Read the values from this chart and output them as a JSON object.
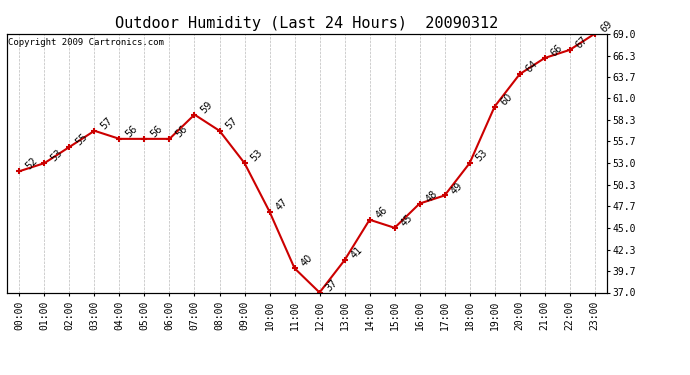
{
  "title": "Outdoor Humidity (Last 24 Hours)  20090312",
  "copyright": "Copyright 2009 Cartronics.com",
  "x_labels": [
    "00:00",
    "01:00",
    "02:00",
    "03:00",
    "04:00",
    "05:00",
    "06:00",
    "07:00",
    "08:00",
    "09:00",
    "10:00",
    "11:00",
    "12:00",
    "13:00",
    "14:00",
    "15:00",
    "16:00",
    "17:00",
    "18:00",
    "19:00",
    "20:00",
    "21:00",
    "22:00",
    "23:00"
  ],
  "y_values": [
    52,
    53,
    55,
    57,
    56,
    56,
    56,
    59,
    57,
    53,
    47,
    40,
    37,
    41,
    46,
    45,
    48,
    49,
    53,
    60,
    64,
    66,
    67,
    69
  ],
  "y_labels_right": [
    "37.0",
    "39.7",
    "42.3",
    "45.0",
    "47.7",
    "50.3",
    "53.0",
    "55.7",
    "58.3",
    "61.0",
    "63.7",
    "66.3",
    "69.0"
  ],
  "ylim_min": 37.0,
  "ylim_max": 69.0,
  "line_color": "#cc0000",
  "marker_color": "#cc0000",
  "bg_color": "#ffffff",
  "grid_color": "#bbbbbb",
  "title_fontsize": 11,
  "label_fontsize": 7,
  "annot_fontsize": 7,
  "copyright_fontsize": 6.5
}
